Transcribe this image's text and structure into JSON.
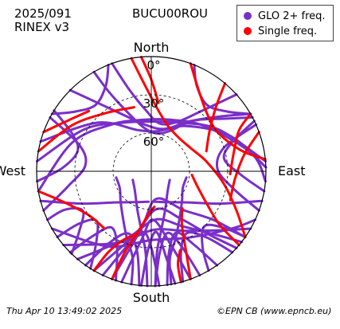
{
  "header": {
    "date": "2025/091",
    "format": "RINEX v3",
    "station": "BUCU00ROU"
  },
  "footer": {
    "timestamp": "Thu Apr 10 13:49:02 2025",
    "credit": "©EPN CB (www.epncb.eu)"
  },
  "legend": {
    "items": [
      {
        "label": "GLO 2+ freq.",
        "color": "#7a2fc9"
      },
      {
        "label": "Single freq.",
        "color": "#ff0000"
      }
    ]
  },
  "chart_data": {
    "type": "scatter",
    "projection": "polar skyplot (azimuth clockwise from North, elevation 90° at center)",
    "directions": [
      "North",
      "East",
      "South",
      "West"
    ],
    "elevation_rings": [
      {
        "elevation": 0,
        "label": "0°"
      },
      {
        "elevation": 30,
        "label": "30°"
      },
      {
        "elevation": 60,
        "label": "60°"
      }
    ],
    "series": [
      {
        "name": "GLO 2+ freq.",
        "color": "#7a2fc9",
        "tracks": [
          [
            [
              -85,
              0
            ],
            [
              -58,
              28
            ],
            [
              -30,
              46
            ],
            [
              0,
              51
            ],
            [
              30,
              46
            ],
            [
              58,
              28
            ],
            [
              85,
              0
            ]
          ],
          [
            [
              -100,
              0
            ],
            [
              -70,
              24
            ],
            [
              -40,
              42
            ],
            [
              -10,
              49
            ],
            [
              20,
              47
            ],
            [
              50,
              35
            ],
            [
              80,
              10
            ],
            [
              95,
              0
            ]
          ],
          [
            [
              -75,
              0
            ],
            [
              -48,
              33
            ],
            [
              -18,
              56
            ],
            [
              10,
              58
            ],
            [
              38,
              45
            ],
            [
              66,
              22
            ],
            [
              88,
              0
            ]
          ],
          [
            [
              -30,
              0
            ],
            [
              -28,
              20
            ],
            [
              -22,
              40
            ],
            [
              -10,
              55
            ],
            [
              8,
              60
            ],
            [
              25,
              55
            ],
            [
              40,
              38
            ],
            [
              55,
              18
            ],
            [
              62,
              0
            ]
          ],
          [
            [
              -45,
              0
            ],
            [
              -38,
              22
            ],
            [
              -25,
              42
            ],
            [
              -5,
              54
            ],
            [
              18,
              55
            ],
            [
              38,
              40
            ],
            [
              52,
              20
            ],
            [
              60,
              0
            ]
          ],
          [
            [
              -20,
              0
            ],
            [
              -15,
              24
            ],
            [
              -5,
              42
            ],
            [
              10,
              52
            ],
            [
              28,
              46
            ],
            [
              40,
              28
            ],
            [
              48,
              0
            ]
          ],
          [
            [
              -120,
              0
            ],
            [
              -150,
              22
            ],
            [
              -180,
              36
            ],
            [
              150,
              30
            ],
            [
              125,
              12
            ],
            [
              115,
              0
            ]
          ],
          [
            [
              -130,
              0
            ],
            [
              -155,
              28
            ],
            [
              178,
              44
            ],
            [
              150,
              36
            ],
            [
              130,
              18
            ],
            [
              120,
              0
            ]
          ],
          [
            [
              -140,
              0
            ],
            [
              -160,
              34
            ],
            [
              175,
              52
            ],
            [
              150,
              40
            ],
            [
              135,
              20
            ],
            [
              128,
              0
            ]
          ],
          [
            [
              -150,
              0
            ],
            [
              -165,
              38
            ],
            [
              172,
              60
            ],
            [
              148,
              46
            ],
            [
              138,
              24
            ],
            [
              132,
              0
            ]
          ],
          [
            [
              -160,
              0
            ],
            [
              -170,
              44
            ],
            [
              170,
              68
            ],
            [
              140,
              50
            ],
            [
              128,
              28
            ],
            [
              125,
              0
            ]
          ],
          [
            [
              -165,
              0
            ],
            [
              -172,
              36
            ],
            [
              178,
              52
            ],
            [
              165,
              30
            ],
            [
              160,
              0
            ]
          ],
          [
            [
              -175,
              0
            ],
            [
              -178,
              30
            ],
            [
              175,
              42
            ],
            [
              170,
              20
            ],
            [
              168,
              0
            ]
          ],
          [
            [
              -155,
              0
            ],
            [
              -162,
              28
            ],
            [
              -172,
              42
            ],
            [
              180,
              30
            ],
            [
              176,
              0
            ]
          ],
          [
            [
              -145,
              0
            ],
            [
              -150,
              26
            ],
            [
              -160,
              38
            ],
            [
              -170,
              26
            ],
            [
              -174,
              0
            ]
          ],
          [
            [
              -135,
              0
            ],
            [
              -138,
              22
            ],
            [
              -145,
              36
            ],
            [
              -156,
              24
            ],
            [
              -162,
              0
            ]
          ],
          [
            [
              -125,
              0
            ],
            [
              -126,
              20
            ],
            [
              -132,
              32
            ],
            [
              -142,
              20
            ],
            [
              -148,
              0
            ]
          ],
          [
            [
              -115,
              0
            ],
            [
              -114,
              16
            ],
            [
              -120,
              28
            ],
            [
              -130,
              16
            ],
            [
              -136,
              0
            ]
          ],
          [
            [
              -110,
              0
            ],
            [
              -100,
              24
            ],
            [
              -85,
              38
            ],
            [
              -70,
              30
            ],
            [
              -62,
              0
            ]
          ],
          [
            [
              -95,
              0
            ],
            [
              -88,
              20
            ],
            [
              -75,
              30
            ],
            [
              -65,
              22
            ],
            [
              -58,
              0
            ]
          ],
          [
            [
              135,
              0
            ],
            [
              140,
              22
            ],
            [
              150,
              34
            ],
            [
              160,
              22
            ],
            [
              164,
              0
            ]
          ],
          [
            [
              145,
              0
            ],
            [
              150,
              24
            ],
            [
              158,
              38
            ],
            [
              168,
              24
            ],
            [
              172,
              0
            ]
          ],
          [
            [
              155,
              0
            ],
            [
              158,
              26
            ],
            [
              165,
              40
            ],
            [
              174,
              26
            ],
            [
              178,
              0
            ]
          ],
          [
            [
              125,
              0
            ],
            [
              128,
              18
            ],
            [
              136,
              30
            ],
            [
              146,
              18
            ],
            [
              150,
              0
            ]
          ],
          [
            [
              110,
              0
            ],
            [
              102,
              24
            ],
            [
              88,
              38
            ],
            [
              72,
              30
            ],
            [
              66,
              0
            ]
          ],
          [
            [
              100,
              0
            ],
            [
              92,
              20
            ],
            [
              80,
              32
            ],
            [
              70,
              22
            ],
            [
              64,
              0
            ]
          ],
          [
            [
              -60,
              0
            ],
            [
              -52,
              14
            ],
            [
              -40,
              22
            ],
            [
              -28,
              14
            ],
            [
              -22,
              0
            ]
          ],
          [
            [
              60,
              0
            ],
            [
              52,
              14
            ],
            [
              40,
              22
            ],
            [
              28,
              14
            ],
            [
              22,
              0
            ]
          ],
          [
            [
              -170,
              0
            ],
            [
              -168,
              20
            ],
            [
              -160,
              34
            ],
            [
              -150,
              46
            ],
            [
              -135,
              56
            ],
            [
              -118,
              62
            ],
            [
              -100,
              62
            ]
          ],
          [
            [
              170,
              0
            ],
            [
              168,
              20
            ],
            [
              160,
              34
            ],
            [
              150,
              46
            ],
            [
              135,
              56
            ],
            [
              118,
              62
            ],
            [
              100,
              62
            ]
          ],
          [
            [
              -178,
              0
            ],
            [
              -176,
              26
            ],
            [
              -170,
              44
            ],
            [
              -160,
              58
            ],
            [
              -140,
              70
            ],
            [
              -115,
              74
            ]
          ],
          [
            [
              178,
              0
            ],
            [
              176,
              26
            ],
            [
              170,
              44
            ],
            [
              160,
              58
            ],
            [
              140,
              70
            ],
            [
              115,
              74
            ]
          ],
          [
            [
              -105,
              0
            ],
            [
              -115,
              30
            ],
            [
              -130,
              52
            ],
            [
              -150,
              62
            ],
            [
              -175,
              66
            ]
          ],
          [
            [
              105,
              0
            ],
            [
              115,
              30
            ],
            [
              130,
              52
            ],
            [
              150,
              62
            ],
            [
              175,
              66
            ]
          ]
        ]
      },
      {
        "name": "Single freq.",
        "color": "#ff0000",
        "tracks": [
          [
            [
              -80,
              0
            ],
            [
              -60,
              18
            ],
            [
              -38,
              32
            ],
            [
              -15,
              38
            ]
          ],
          [
            [
              -70,
              0
            ],
            [
              -58,
              14
            ],
            [
              -46,
              22
            ]
          ],
          [
            [
              -100,
              0
            ],
            [
              -110,
              18
            ],
            [
              -125,
              30
            ],
            [
              -140,
              32
            ]
          ],
          [
            [
              -160,
              0
            ],
            [
              -162,
              24
            ],
            [
              -168,
              42
            ],
            [
              -176,
              56
            ],
            [
              175,
              62
            ]
          ],
          [
            [
              -150,
              0
            ],
            [
              -152,
              18
            ],
            [
              -158,
              32
            ],
            [
              -168,
              40
            ]
          ],
          [
            [
              -10,
              0
            ],
            [
              -5,
              20
            ],
            [
              5,
              40
            ],
            [
              20,
              52
            ],
            [
              40,
              56
            ],
            [
              60,
              54
            ],
            [
              80,
              46
            ],
            [
              100,
              32
            ],
            [
              115,
              16
            ],
            [
              125,
              0
            ]
          ],
          [
            [
              40,
              0
            ],
            [
              45,
              18
            ],
            [
              55,
              34
            ],
            [
              70,
              44
            ]
          ],
          [
            [
              60,
              0
            ],
            [
              65,
              14
            ],
            [
              78,
              24
            ],
            [
              92,
              28
            ]
          ],
          [
            [
              70,
              0
            ],
            [
              80,
              16
            ],
            [
              95,
              24
            ],
            [
              110,
              24
            ]
          ],
          [
            [
              130,
              0
            ],
            [
              128,
              22
            ],
            [
              120,
              40
            ],
            [
              108,
              52
            ],
            [
              95,
              58
            ]
          ],
          [
            [
              160,
              0
            ],
            [
              156,
              24
            ],
            [
              150,
              42
            ],
            [
              140,
              52
            ]
          ],
          [
            [
              165,
              0
            ],
            [
              164,
              14
            ],
            [
              160,
              24
            ]
          ],
          [
            [
              -5,
              0
            ],
            [
              0,
              18
            ],
            [
              6,
              36
            ]
          ],
          [
            [
              20,
              0
            ],
            [
              30,
              16
            ],
            [
              42,
              26
            ],
            [
              56,
              30
            ],
            [
              68,
              26
            ],
            [
              78,
              16
            ],
            [
              84,
              0
            ]
          ]
        ]
      }
    ]
  }
}
